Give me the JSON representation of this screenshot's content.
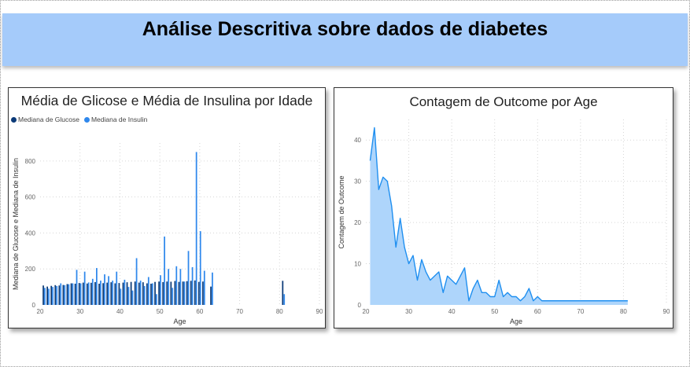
{
  "page": {
    "title": "Análise Descritiva sobre dados de diabetes"
  },
  "chart_data": [
    {
      "type": "bar",
      "title": "Média de Glicose e Média de Insulina por Idade",
      "xlabel": "Age",
      "ylabel": "Mediana de Glucose e Mediana de Insulin",
      "xlim": [
        20,
        90
      ],
      "ylim": [
        0,
        900
      ],
      "xticks": [
        20,
        30,
        40,
        50,
        60,
        70,
        80,
        90
      ],
      "yticks": [
        0,
        200,
        400,
        600,
        800
      ],
      "grid": true,
      "legend_position": "top-left",
      "x": [
        21,
        22,
        23,
        24,
        25,
        26,
        27,
        28,
        29,
        30,
        31,
        32,
        33,
        34,
        35,
        36,
        37,
        38,
        39,
        40,
        41,
        42,
        43,
        44,
        45,
        46,
        47,
        48,
        49,
        50,
        51,
        52,
        53,
        54,
        55,
        56,
        57,
        58,
        59,
        60,
        61,
        62,
        63,
        64,
        65,
        66,
        67,
        68,
        69,
        70,
        72,
        81
      ],
      "series": [
        {
          "name": "Mediana de Glucose",
          "color": "#0b3a78",
          "values": [
            108,
            102,
            106,
            110,
            108,
            111,
            116,
            120,
            118,
            122,
            124,
            119,
            123,
            127,
            118,
            121,
            124,
            126,
            120,
            122,
            124,
            126,
            128,
            130,
            124,
            126,
            120,
            118,
            128,
            130,
            127,
            130,
            129,
            133,
            128,
            130,
            132,
            134,
            136,
            128,
            130,
            null,
            102,
            null,
            null,
            null,
            null,
            null,
            null,
            null,
            null,
            134
          ]
        },
        {
          "name": "Mediana de Insulin",
          "color": "#2f88ec",
          "values": [
            95,
            90,
            100,
            105,
            120,
            110,
            115,
            120,
            195,
            120,
            185,
            125,
            145,
            205,
            135,
            170,
            160,
            135,
            185,
            90,
            140,
            100,
            80,
            260,
            135,
            105,
            155,
            120,
            60,
            165,
            380,
            200,
            95,
            215,
            200,
            130,
            300,
            210,
            850,
            410,
            190,
            null,
            180,
            null,
            null,
            null,
            null,
            null,
            null,
            null,
            null,
            60
          ]
        }
      ]
    },
    {
      "type": "area",
      "title": "Contagem de Outcome por Age",
      "xlabel": "Age",
      "ylabel": "Contagem de Outcome",
      "xlim": [
        20,
        90
      ],
      "ylim": [
        0,
        45
      ],
      "xticks": [
        20,
        30,
        40,
        50,
        60,
        70,
        80,
        90
      ],
      "yticks": [
        0,
        10,
        20,
        30,
        40
      ],
      "grid": true,
      "color": "#1f8ff0",
      "fill": "#aed5fb",
      "x": [
        21,
        22,
        23,
        24,
        25,
        26,
        27,
        28,
        29,
        30,
        31,
        32,
        33,
        34,
        35,
        36,
        37,
        38,
        39,
        40,
        41,
        42,
        43,
        44,
        45,
        46,
        47,
        48,
        49,
        50,
        51,
        52,
        53,
        54,
        55,
        56,
        57,
        58,
        59,
        60,
        61,
        62,
        63,
        64,
        65,
        66,
        67,
        68,
        69,
        70,
        72,
        81
      ],
      "values": [
        35,
        43,
        28,
        31,
        30,
        24,
        14,
        21,
        14,
        10,
        12,
        6,
        11,
        8,
        6,
        7,
        8,
        3,
        7,
        6,
        5,
        7,
        9,
        1,
        4,
        6,
        3,
        3,
        2,
        2,
        6,
        2,
        3,
        2,
        2,
        1,
        2,
        4,
        1,
        2,
        1,
        1,
        1,
        1,
        1,
        1,
        1,
        1,
        1,
        1,
        1,
        1
      ]
    }
  ]
}
